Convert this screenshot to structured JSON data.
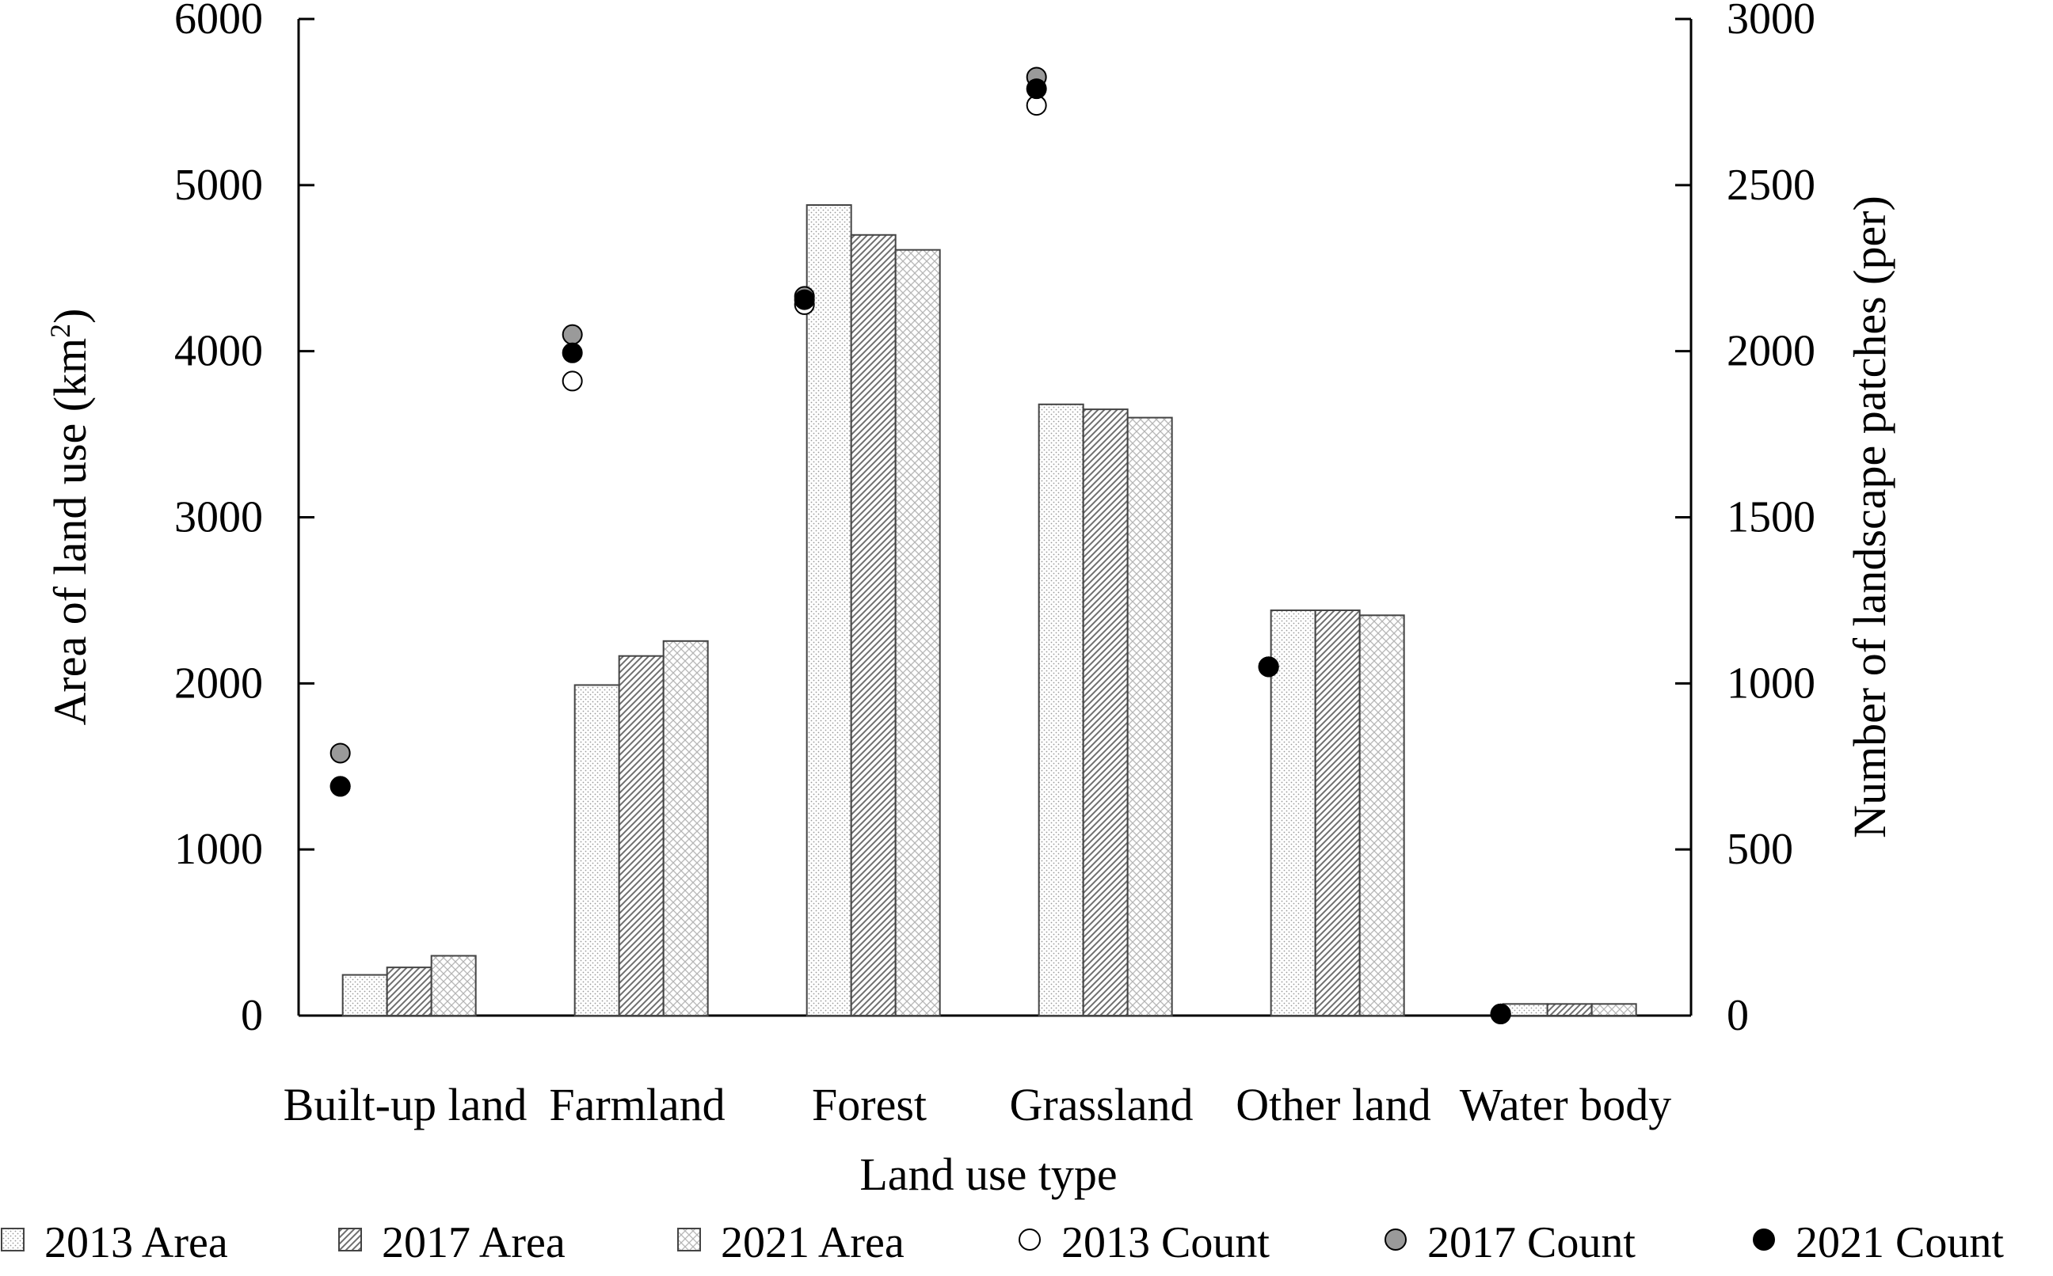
{
  "chart_data": {
    "type": "bar",
    "title": "",
    "xlabel": "Land use type",
    "ylabel_left": "Area of land use (km",
    "ylabel_left_sup": "2",
    "ylabel_left_suffix": ")",
    "ylabel_right": "Number of landscape patches (per)",
    "ylim_left": [
      0,
      6000
    ],
    "ylim_right": [
      0,
      3000
    ],
    "yticks_left": [
      0,
      1000,
      2000,
      3000,
      4000,
      5000,
      6000
    ],
    "yticks_right": [
      0,
      500,
      1000,
      1500,
      2000,
      2500,
      3000
    ],
    "categories": [
      "Built-up land",
      "Farmland",
      "Forest",
      "Grassland",
      "Other land",
      "Water body"
    ],
    "series": [
      {
        "name": "2013 Area",
        "kind": "bar",
        "axis": "left",
        "pattern": "dots",
        "values": [
          245,
          1990,
          4880,
          3680,
          2440,
          70
        ]
      },
      {
        "name": "2017 Area",
        "kind": "bar",
        "axis": "left",
        "pattern": "diag",
        "values": [
          290,
          2165,
          4700,
          3650,
          2440,
          70
        ]
      },
      {
        "name": "2021 Area",
        "kind": "bar",
        "axis": "left",
        "pattern": "cross",
        "values": [
          360,
          2255,
          4610,
          3600,
          2410,
          70
        ]
      },
      {
        "name": "2013 Count",
        "kind": "point",
        "axis": "right",
        "color": "#ffffff",
        "values": [
          690,
          1910,
          2140,
          2740,
          1050,
          5
        ]
      },
      {
        "name": "2017 Count",
        "kind": "point",
        "axis": "right",
        "color": "#9a9a9a",
        "values": [
          790,
          2050,
          2165,
          2825,
          1050,
          5
        ]
      },
      {
        "name": "2021 Count",
        "kind": "point",
        "axis": "right",
        "color": "#000000",
        "values": [
          690,
          1995,
          2155,
          2790,
          1050,
          5
        ]
      }
    ],
    "legend_position": "bottom",
    "grid": false
  }
}
